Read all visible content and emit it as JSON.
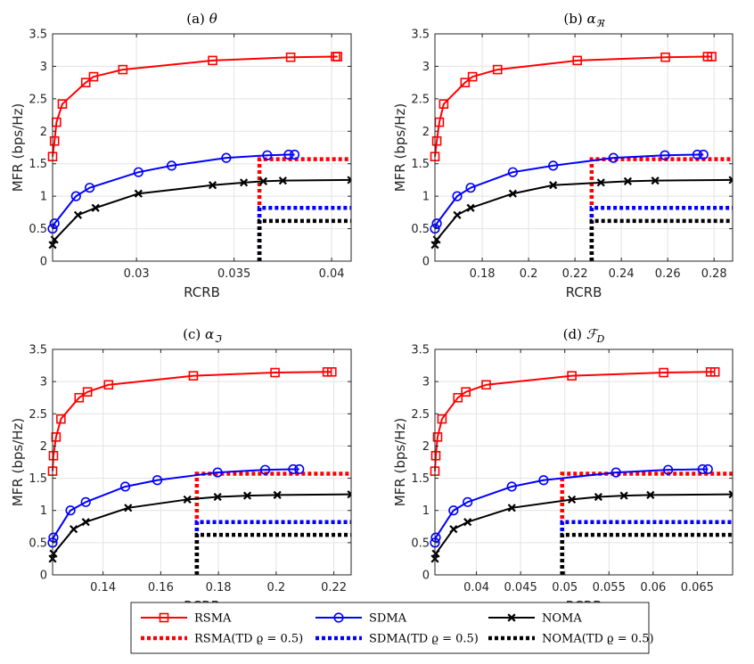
{
  "chart_data": [
    {
      "type": "line",
      "title_prefix": "(a)",
      "title_math": "θ",
      "title_sub": "",
      "xlabel": "RCRB",
      "ylabel": "MFR (bps/Hz)",
      "xlim": [
        0.0257,
        0.041
      ],
      "ylim": [
        0,
        3.5
      ],
      "xticks": [
        "0.03",
        "0.035",
        "0.04"
      ],
      "xtick_values": [
        0.03,
        0.035,
        0.04
      ],
      "yticks": [
        "0",
        "0.5",
        "1",
        "1.5",
        "2",
        "2.5",
        "3",
        "3.5"
      ],
      "ytick_values": [
        0,
        0.5,
        1,
        1.5,
        2,
        2.5,
        3,
        3.5
      ],
      "series": [
        {
          "name": "RSMA",
          "x": [
            0.0257,
            0.0258,
            0.0259,
            0.0262,
            0.0274,
            0.0278,
            0.0293,
            0.0339,
            0.0379,
            0.0402,
            0.0403
          ],
          "y": [
            1.61,
            1.85,
            2.14,
            2.42,
            2.75,
            2.84,
            2.95,
            3.09,
            3.14,
            3.15,
            3.15
          ]
        },
        {
          "name": "SDMA",
          "x": [
            0.0257,
            0.0258,
            0.0269,
            0.0276,
            0.0301,
            0.0318,
            0.0346,
            0.0367,
            0.0378,
            0.0381
          ],
          "y": [
            0.5,
            0.58,
            1.0,
            1.13,
            1.37,
            1.47,
            1.59,
            1.63,
            1.64,
            1.64
          ]
        },
        {
          "name": "NOMA",
          "x": [
            0.0257,
            0.0258,
            0.027,
            0.0279,
            0.0301,
            0.0339,
            0.0355,
            0.0365,
            0.0375,
            0.041
          ],
          "y": [
            0.25,
            0.33,
            0.71,
            0.82,
            1.04,
            1.17,
            1.21,
            1.23,
            1.24,
            1.25
          ]
        }
      ],
      "td_threshold": 0.0363,
      "td_series": [
        {
          "name": "RSMA(TD ϱ = 0.5)",
          "y": 1.57
        },
        {
          "name": "SDMA(TD ϱ = 0.5)",
          "y": 0.82
        },
        {
          "name": "NOMA(TD ϱ = 0.5)",
          "y": 0.62
        }
      ]
    },
    {
      "type": "line",
      "title_prefix": "(b)",
      "title_math": "α",
      "title_sub": "ℜ",
      "xlabel": "RCRB",
      "ylabel": "MFR (bps/Hz)",
      "xlim": [
        0.1596,
        0.288
      ],
      "ylim": [
        0,
        3.5
      ],
      "xticks": [
        "0.18",
        "0.2",
        "0.22",
        "0.24",
        "0.26",
        "0.28"
      ],
      "xtick_values": [
        0.18,
        0.2,
        0.22,
        0.24,
        0.26,
        0.28
      ],
      "yticks": [
        "0",
        "0.5",
        "1",
        "1.5",
        "2",
        "2.5",
        "3",
        "3.5"
      ],
      "ytick_values": [
        0,
        0.5,
        1,
        1.5,
        2,
        2.5,
        3,
        3.5
      ],
      "series": [
        {
          "name": "RSMA",
          "x": [
            0.1596,
            0.1604,
            0.1615,
            0.1634,
            0.1726,
            0.1758,
            0.1866,
            0.221,
            0.259,
            0.2772,
            0.279
          ],
          "y": [
            1.61,
            1.85,
            2.14,
            2.42,
            2.75,
            2.84,
            2.95,
            3.09,
            3.14,
            3.15,
            3.15
          ]
        },
        {
          "name": "SDMA",
          "x": [
            0.1596,
            0.1604,
            0.1692,
            0.175,
            0.1932,
            0.2106,
            0.2366,
            0.2588,
            0.2728,
            0.2754
          ],
          "y": [
            0.5,
            0.58,
            1.0,
            1.13,
            1.37,
            1.47,
            1.59,
            1.63,
            1.64,
            1.64
          ]
        },
        {
          "name": "NOMA",
          "x": [
            0.1596,
            0.1604,
            0.1692,
            0.175,
            0.1932,
            0.2106,
            0.2312,
            0.2428,
            0.2546,
            0.288
          ],
          "y": [
            0.25,
            0.33,
            0.71,
            0.82,
            1.04,
            1.17,
            1.21,
            1.23,
            1.24,
            1.25
          ]
        }
      ],
      "td_threshold": 0.2272,
      "td_series": [
        {
          "name": "RSMA(TD ϱ = 0.5)",
          "y": 1.57
        },
        {
          "name": "SDMA(TD ϱ = 0.5)",
          "y": 0.82
        },
        {
          "name": "NOMA(TD ϱ = 0.5)",
          "y": 0.62
        }
      ]
    },
    {
      "type": "line",
      "title_prefix": "(c)",
      "title_math": "α",
      "title_sub": "ℑ",
      "xlabel": "RCRB",
      "ylabel": "MFR (bps/Hz)",
      "xlim": [
        0.1225,
        0.226
      ],
      "ylim": [
        0,
        3.5
      ],
      "xticks": [
        "0.14",
        "0.16",
        "0.18",
        "0.2",
        "0.22"
      ],
      "xtick_values": [
        0.14,
        0.16,
        0.18,
        0.2,
        0.22
      ],
      "yticks": [
        "0",
        "0.5",
        "1",
        "1.5",
        "2",
        "2.5",
        "3",
        "3.5"
      ],
      "ytick_values": [
        0,
        0.5,
        1,
        1.5,
        2,
        2.5,
        3,
        3.5
      ],
      "series": [
        {
          "name": "RSMA",
          "x": [
            0.1225,
            0.1228,
            0.1237,
            0.1254,
            0.1317,
            0.1346,
            0.1419,
            0.1713,
            0.1996,
            0.2177,
            0.2193
          ],
          "y": [
            1.61,
            1.85,
            2.14,
            2.42,
            2.75,
            2.84,
            2.95,
            3.09,
            3.14,
            3.15,
            3.15
          ]
        },
        {
          "name": "SDMA",
          "x": [
            0.1225,
            0.1228,
            0.1287,
            0.134,
            0.1477,
            0.1588,
            0.1797,
            0.1962,
            0.2059,
            0.208
          ],
          "y": [
            0.5,
            0.58,
            1.0,
            1.13,
            1.37,
            1.47,
            1.59,
            1.63,
            1.64,
            1.64
          ]
        },
        {
          "name": "NOMA",
          "x": [
            0.1225,
            0.1228,
            0.1298,
            0.134,
            0.1487,
            0.1692,
            0.1797,
            0.19,
            0.2004,
            0.226
          ],
          "y": [
            0.25,
            0.33,
            0.71,
            0.82,
            1.04,
            1.17,
            1.21,
            1.23,
            1.24,
            1.25
          ]
        }
      ],
      "td_threshold": 0.1725,
      "td_series": [
        {
          "name": "RSMA(TD ϱ = 0.5)",
          "y": 1.57
        },
        {
          "name": "SDMA(TD ϱ = 0.5)",
          "y": 0.82
        },
        {
          "name": "NOMA(TD ϱ = 0.5)",
          "y": 0.62
        }
      ]
    },
    {
      "type": "line",
      "title_prefix": "(d)",
      "title_math": "ℱ",
      "title_sub": "D",
      "xlabel": "RCRB",
      "ylabel": "MFR (bps/Hz)",
      "xlim": [
        0.0353,
        0.069
      ],
      "ylim": [
        0,
        3.5
      ],
      "xticks": [
        "0.04",
        "0.045",
        "0.05",
        "0.055",
        "0.06",
        "0.065"
      ],
      "xtick_values": [
        0.04,
        0.045,
        0.05,
        0.055,
        0.06,
        0.065
      ],
      "yticks": [
        "0",
        "0.5",
        "1",
        "1.5",
        "2",
        "2.5",
        "3",
        "3.5"
      ],
      "ytick_values": [
        0,
        0.5,
        1,
        1.5,
        2,
        2.5,
        3,
        3.5
      ],
      "series": [
        {
          "name": "RSMA",
          "x": [
            0.0353,
            0.0354,
            0.0356,
            0.0361,
            0.0379,
            0.0388,
            0.0411,
            0.0508,
            0.0612,
            0.0665,
            0.067
          ],
          "y": [
            1.61,
            1.85,
            2.14,
            2.42,
            2.75,
            2.84,
            2.95,
            3.09,
            3.14,
            3.15,
            3.15
          ]
        },
        {
          "name": "SDMA",
          "x": [
            0.0353,
            0.0354,
            0.0374,
            0.039,
            0.044,
            0.0476,
            0.0558,
            0.0617,
            0.0656,
            0.0662
          ],
          "y": [
            0.5,
            0.58,
            1.0,
            1.13,
            1.37,
            1.47,
            1.59,
            1.63,
            1.64,
            1.64
          ]
        },
        {
          "name": "NOMA",
          "x": [
            0.0353,
            0.0354,
            0.0374,
            0.039,
            0.044,
            0.0508,
            0.0538,
            0.0567,
            0.0597,
            0.069
          ],
          "y": [
            0.25,
            0.33,
            0.71,
            0.82,
            1.04,
            1.17,
            1.21,
            1.23,
            1.24,
            1.25
          ]
        }
      ],
      "td_threshold": 0.0497,
      "td_series": [
        {
          "name": "RSMA(TD ϱ = 0.5)",
          "y": 1.57
        },
        {
          "name": "SDMA(TD ϱ = 0.5)",
          "y": 0.82
        },
        {
          "name": "NOMA(TD ϱ = 0.5)",
          "y": 0.62
        }
      ]
    }
  ],
  "legend": {
    "items": [
      {
        "label": "RSMA",
        "key": "RSMA"
      },
      {
        "label": "SDMA",
        "key": "SDMA"
      },
      {
        "label": "NOMA",
        "key": "NOMA"
      },
      {
        "label": "RSMA(TD ϱ = 0.5)",
        "key": "RSMA-TD"
      },
      {
        "label": "SDMA(TD ϱ = 0.5)",
        "key": "SDMA-TD"
      },
      {
        "label": "NOMA(TD ϱ = 0.5)",
        "key": "NOMA-TD"
      }
    ]
  },
  "colors": {
    "RSMA": "#ff0000",
    "SDMA": "#0000ff",
    "NOMA": "#000000",
    "grid": "#e3e3e3",
    "axis": "#262626"
  }
}
